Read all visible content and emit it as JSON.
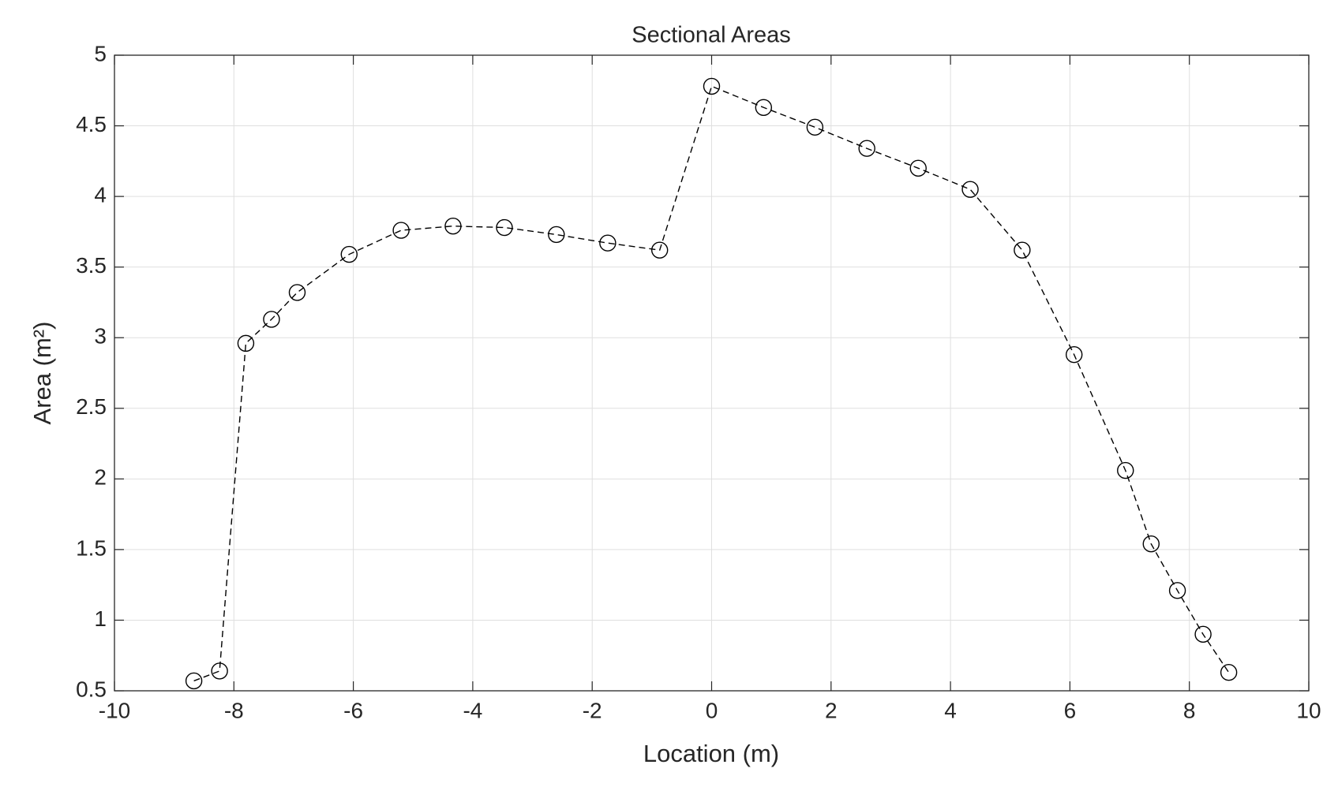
{
  "chart_data": {
    "type": "line",
    "title": "Sectional Areas",
    "xlabel": "Location (m)",
    "ylabel": "Area (m²)",
    "x": [
      -8.67,
      -8.24,
      -7.8,
      -7.37,
      -6.94,
      -6.07,
      -5.2,
      -4.33,
      -3.47,
      -2.6,
      -1.74,
      -0.87,
      0,
      0.87,
      1.73,
      2.6,
      3.46,
      4.33,
      5.2,
      6.07,
      6.93,
      7.36,
      7.8,
      8.23,
      8.66
    ],
    "series": [
      {
        "color": "#000000",
        "linestyle": "dashed",
        "marker": "circle",
        "values": [
          0.57,
          0.64,
          2.96,
          3.13,
          3.32,
          3.59,
          3.76,
          3.79,
          3.78,
          3.73,
          3.67,
          3.62,
          4.78,
          4.63,
          4.49,
          4.34,
          4.2,
          4.05,
          3.62,
          2.88,
          2.06,
          1.54,
          1.21,
          0.9,
          0.63
        ]
      }
    ],
    "xlim": [
      -10,
      10
    ],
    "xticks": [
      -10,
      -8,
      -6,
      -4,
      -2,
      0,
      2,
      4,
      6,
      8,
      10
    ],
    "ylim": [
      0.5,
      5
    ],
    "yticks": [
      0.5,
      1,
      1.5,
      2,
      2.5,
      3,
      3.5,
      4,
      4.5,
      5
    ],
    "grid": true
  }
}
